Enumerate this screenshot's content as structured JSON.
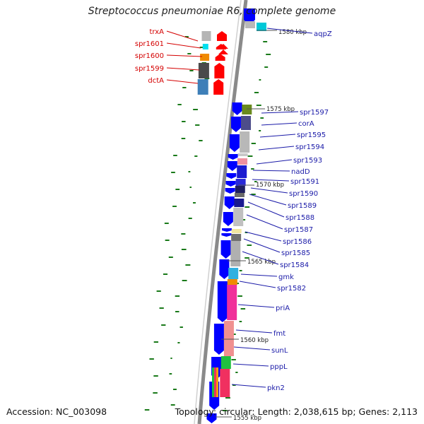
{
  "title": "Streptococcus pneumoniae R6, complete genome",
  "accession": "Accession: NC_003098",
  "summary": "Topology: circular; Length: 2,038,615 bp; Genes: 2,113",
  "colors": {
    "forward_gene": "#0000ff",
    "reverse_gene": "#ff0000",
    "gene_label_forward": "#1a1aa8",
    "gene_label_reverse": "#d40000",
    "backbone": "#8a8a8a",
    "gc_skew_tick": "#1a7a1a"
  },
  "kbp_labels": [
    {
      "text": "1580 kbp"
    },
    {
      "text": "1575 kbp"
    },
    {
      "text": "1570 kbp"
    },
    {
      "text": "1565 kbp"
    },
    {
      "text": "1560 kbp"
    },
    {
      "text": "1555 kbp"
    }
  ],
  "reverse_genes": [
    {
      "label": "trxA",
      "strand": "reverse",
      "color": "#b5b5b5"
    },
    {
      "label": "spr1601",
      "strand": "reverse",
      "color": "#00e0f0"
    },
    {
      "label": "spr1600",
      "strand": "reverse",
      "color": "#f08a00"
    },
    {
      "label": "spr1599",
      "strand": "reverse",
      "color": "#4a4a4a"
    },
    {
      "label": "dctA",
      "strand": "reverse",
      "color": "#3e7fb8"
    }
  ],
  "forward_genes": [
    {
      "label": "aqpZ",
      "strand": "forward",
      "color": "#00c8d8"
    },
    {
      "label": "spr1597",
      "strand": "forward",
      "color": "#6a8a1e"
    },
    {
      "label": "corA",
      "strand": "forward",
      "color": "#4d4d8a"
    },
    {
      "label": "spr1595",
      "strand": "forward",
      "color": "#b8b8b8"
    },
    {
      "label": "spr1594",
      "strand": "forward",
      "color": "#c8c8c8"
    },
    {
      "label": "spr1593",
      "strand": "forward",
      "color": "#f090a0"
    },
    {
      "label": "nadD",
      "strand": "forward",
      "color": "#1a1ad0"
    },
    {
      "label": "spr1591",
      "strand": "forward",
      "color": "#2a2ad8"
    },
    {
      "label": "spr1590",
      "strand": "forward",
      "color": "#1f1f60"
    },
    {
      "label": "spr1589",
      "strand": "forward",
      "color": "#6a6a6a"
    },
    {
      "label": "spr1588",
      "strand": "forward",
      "color": "#1a1a90"
    },
    {
      "label": "spr1587",
      "strand": "forward",
      "color": "#c0c0c0"
    },
    {
      "label": "spr1586",
      "strand": "forward",
      "color": "#f2e6a0"
    },
    {
      "label": "spr1585",
      "strand": "forward",
      "color": "#707070"
    },
    {
      "label": "spr1584",
      "strand": "forward",
      "color": "#b0b0b0"
    },
    {
      "label": "gmk",
      "strand": "forward",
      "color": "#30b0e0"
    },
    {
      "label": "spr1582",
      "strand": "forward",
      "color": "#f08a00"
    },
    {
      "label": "priA",
      "strand": "forward",
      "color": "#f0309a"
    },
    {
      "label": "fmt",
      "strand": "forward",
      "color": "#f09090"
    },
    {
      "label": "sunL",
      "strand": "forward",
      "color": "#f09090"
    },
    {
      "label": "pppL",
      "strand": "forward",
      "color": "#20c040"
    },
    {
      "label": "pkn2",
      "strand": "forward",
      "color": "#f03060"
    }
  ]
}
